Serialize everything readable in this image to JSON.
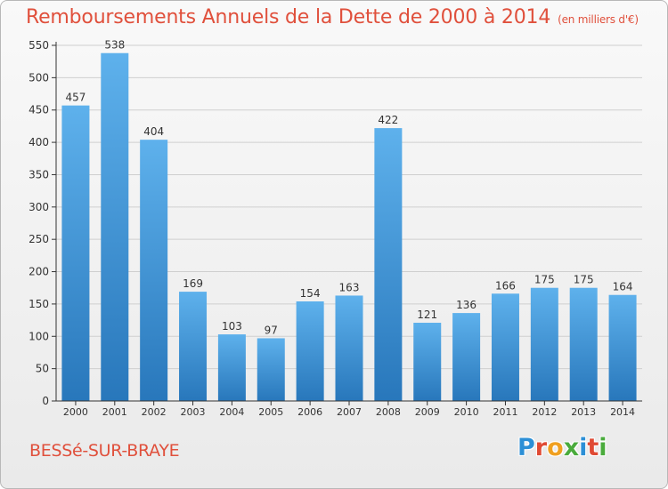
{
  "title": "Remboursements Annuels de la Dette de 2000 à 2014",
  "unit": "(en milliers d'€)",
  "commune": "BESSé-SUR-BRAYE",
  "logo": {
    "text": "Proxiti",
    "letters": [
      {
        "ch": "P",
        "color": "#2c8fd6"
      },
      {
        "ch": "r",
        "color": "#e04a34"
      },
      {
        "ch": "o",
        "color": "#f0a020"
      },
      {
        "ch": "x",
        "color": "#4aab3c"
      },
      {
        "ch": "i",
        "color": "#2c8fd6"
      },
      {
        "ch": "t",
        "color": "#e04a34"
      },
      {
        "ch": "i",
        "color": "#4aab3c"
      }
    ]
  },
  "colors": {
    "title": "#e0503c",
    "bar_light": "#5eb1ec",
    "bar_dark": "#2877bb",
    "axis": "#333333",
    "grid": "#cfcfcf"
  },
  "chart_data": {
    "type": "bar",
    "title": "Remboursements Annuels de la Dette de 2000 à 2014",
    "categories": [
      "2000",
      "2001",
      "2002",
      "2003",
      "2004",
      "2005",
      "2006",
      "2007",
      "2008",
      "2009",
      "2010",
      "2011",
      "2012",
      "2013",
      "2014"
    ],
    "values": [
      457,
      538,
      404,
      169,
      103,
      97,
      154,
      163,
      422,
      121,
      136,
      166,
      175,
      175,
      164
    ],
    "ylim": [
      0,
      550
    ],
    "yticks": [
      0,
      50,
      100,
      150,
      200,
      250,
      300,
      350,
      400,
      450,
      500,
      550
    ],
    "grid": true,
    "data_labels": true
  }
}
